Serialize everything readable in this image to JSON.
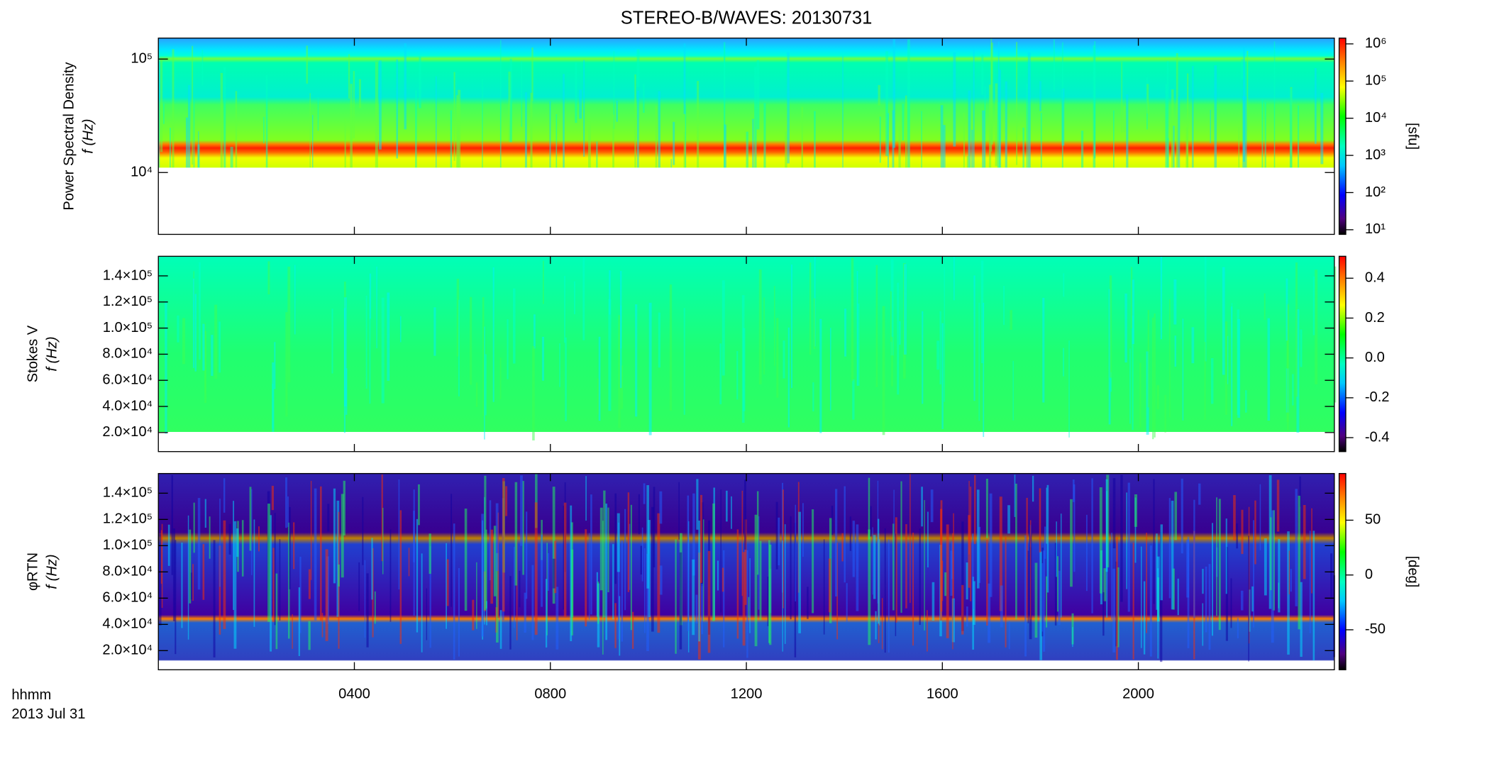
{
  "chart_data": [
    {
      "type": "spectrogram",
      "title": "STEREO-B/WAVES: 20130731",
      "ylabel": [
        "Power Spectral Density",
        "f (Hz)"
      ],
      "ylog": true,
      "ylim": [
        2850,
        153000
      ],
      "yticks": [
        {
          "value": 10000,
          "label": "10⁴"
        },
        {
          "value": 100000,
          "label": "10⁵"
        }
      ],
      "colorbar_label": "[sfu]",
      "clog": true,
      "clim": [
        7.5,
        1430000
      ],
      "cticks": [
        {
          "value": 10,
          "label": "10¹"
        },
        {
          "value": 100,
          "label": "10²"
        },
        {
          "value": 1000,
          "label": "10³"
        },
        {
          "value": 10000,
          "label": "10⁴"
        },
        {
          "value": 100000,
          "label": "10⁵"
        },
        {
          "value": 1000000,
          "label": "10⁶"
        }
      ],
      "xlim": [
        0,
        24
      ],
      "xticks": [
        {
          "value": 4,
          "label": "0400"
        },
        {
          "value": 8,
          "label": "0800"
        },
        {
          "value": 12,
          "label": "1200"
        },
        {
          "value": 16,
          "label": "1600"
        },
        {
          "value": 20,
          "label": "2000"
        }
      ]
    },
    {
      "type": "spectrogram",
      "ylabel": [
        "Stokes V",
        "f (Hz)"
      ],
      "ylog": false,
      "ylim": [
        5400,
        155000
      ],
      "yticks": [
        {
          "value": 20000,
          "label": "2.0×10⁴"
        },
        {
          "value": 40000,
          "label": "4.0×10⁴"
        },
        {
          "value": 60000,
          "label": "6.0×10⁴"
        },
        {
          "value": 80000,
          "label": "8.0×10⁴"
        },
        {
          "value": 100000,
          "label": "1.0×10⁵"
        },
        {
          "value": 120000,
          "label": "1.2×10⁵"
        },
        {
          "value": 140000,
          "label": "1.4×10⁵"
        }
      ],
      "clog": false,
      "clim": [
        -0.47,
        0.51
      ],
      "cticks": [
        -0.4,
        -0.2,
        {
          "value": 0,
          "label": "0.0"
        },
        0.2,
        0.4
      ],
      "xlim": [
        0,
        24
      ],
      "xticks": [
        {
          "value": 4,
          "label": "0400"
        },
        {
          "value": 8,
          "label": "0800"
        },
        {
          "value": 12,
          "label": "1200"
        },
        {
          "value": 16,
          "label": "1600"
        },
        {
          "value": 20,
          "label": "2000"
        }
      ]
    },
    {
      "type": "spectrogram",
      "ylabel": [
        "φRTN",
        "f (Hz)"
      ],
      "ylog": false,
      "ylim": [
        5400,
        155000
      ],
      "yticks": [
        {
          "value": 20000,
          "label": "2.0×10⁴"
        },
        {
          "value": 40000,
          "label": "4.0×10⁴"
        },
        {
          "value": 60000,
          "label": "6.0×10⁴"
        },
        {
          "value": 80000,
          "label": "8.0×10⁴"
        },
        {
          "value": 100000,
          "label": "1.0×10⁵"
        },
        {
          "value": 120000,
          "label": "1.2×10⁵"
        },
        {
          "value": 140000,
          "label": "1.4×10⁵"
        }
      ],
      "colorbar_label": "[deg]",
      "clog": false,
      "clim": [
        -86.5,
        92.6
      ],
      "cticks": [
        -50,
        0,
        50
      ],
      "xlim": [
        0,
        24
      ],
      "xticks": [
        {
          "value": 4,
          "label": "0400"
        },
        {
          "value": 8,
          "label": "0800"
        },
        {
          "value": 12,
          "label": "1200"
        },
        {
          "value": 16,
          "label": "1600"
        },
        {
          "value": 20,
          "label": "2000"
        }
      ],
      "xlabel": [
        "hhmm",
        "2013 Jul 31"
      ]
    }
  ]
}
